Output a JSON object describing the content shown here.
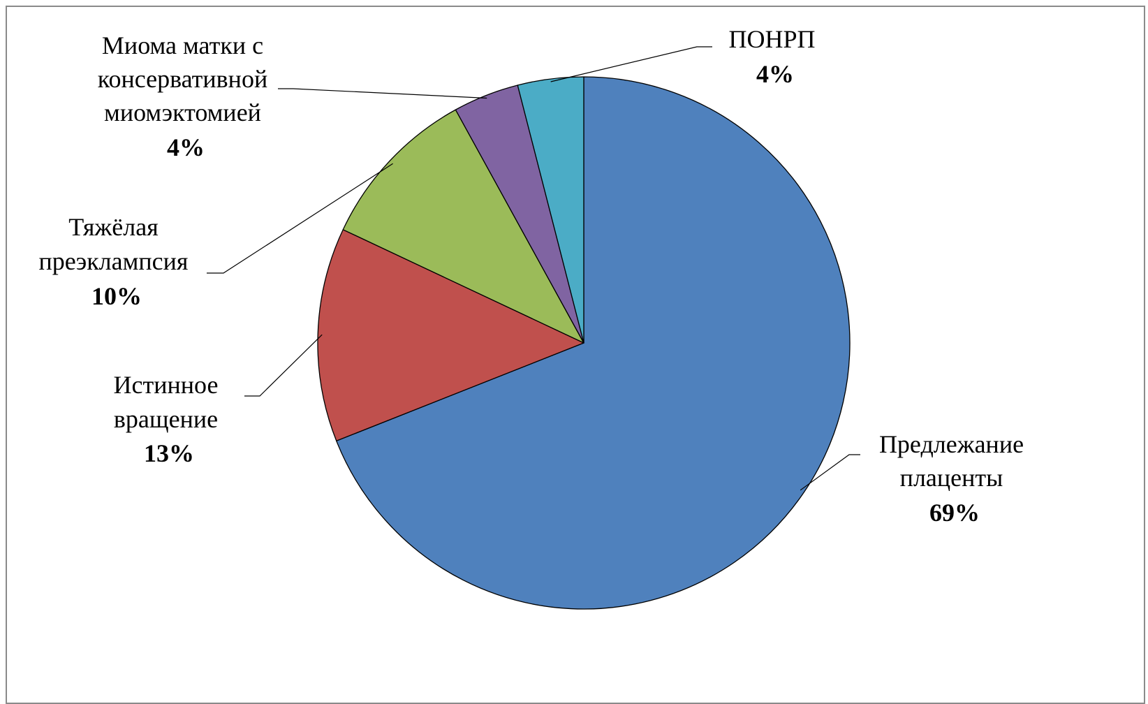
{
  "chart_data": {
    "type": "pie",
    "title": "",
    "start_angle_deg": 90,
    "direction": "clockwise",
    "slices": [
      {
        "name": "Предлежание плаценты",
        "label_lines": [
          "Предлежание",
          "плаценты"
        ],
        "value": 69,
        "label": "69%",
        "color": "#4F81BD"
      },
      {
        "name": "Истинное вращение",
        "label_lines": [
          "Истинное",
          "вращение"
        ],
        "value": 13,
        "label": "13%",
        "color": "#C0504D"
      },
      {
        "name": "Тяжёлая преэклампсия",
        "label_lines": [
          "Тяжёлая",
          "преэклампсия"
        ],
        "value": 10,
        "label": "10%",
        "color": "#9BBB59"
      },
      {
        "name": "Миома матки с консервативной миомэктомией",
        "label_lines": [
          "Миома матки с",
          "консервативной",
          "миомэктомией"
        ],
        "value": 4,
        "label": "4%",
        "color": "#8064A2"
      },
      {
        "name": "ПОНРП",
        "label_lines": [
          "ПОНРП"
        ],
        "value": 4,
        "label": "4%",
        "color": "#4BACC6"
      }
    ],
    "legend": "none",
    "data_labels": "outside with leader lines"
  }
}
